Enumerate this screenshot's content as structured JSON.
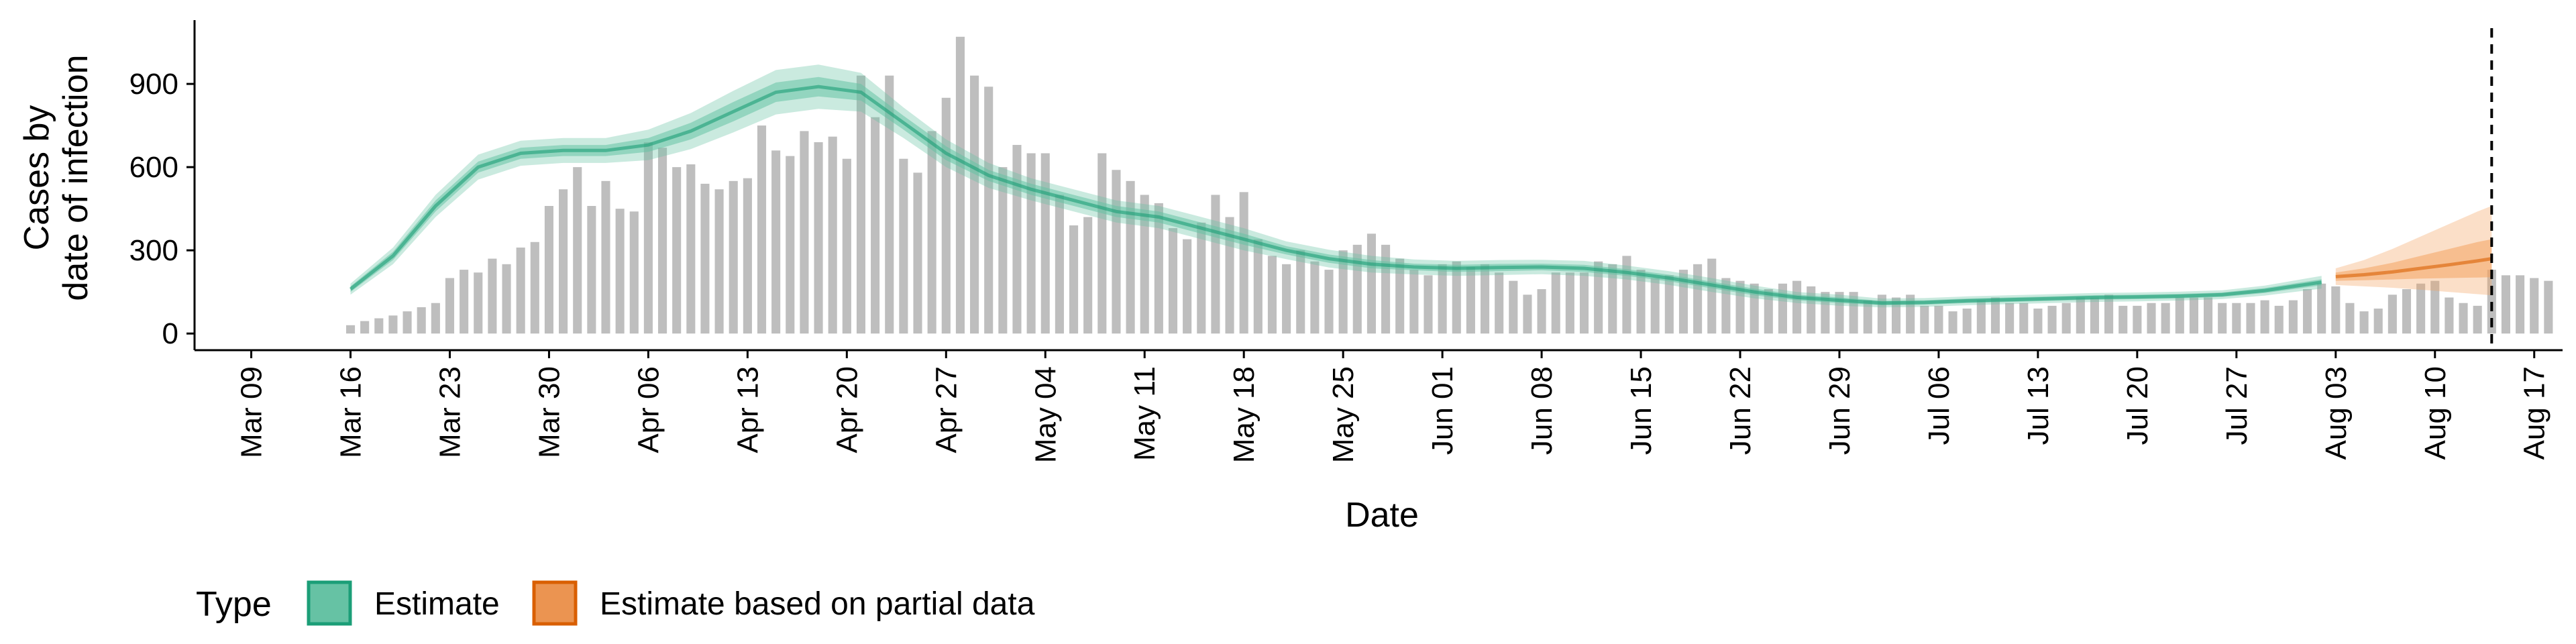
{
  "chart_data": {
    "type": "bar",
    "xlabel": "Date",
    "ylabel_lines": [
      "Cases by",
      "date of infection"
    ],
    "ylim": [
      -60,
      1130
    ],
    "yticks": [
      0,
      300,
      600,
      900
    ],
    "xlim": [
      "2020-03-05",
      "2020-08-19"
    ],
    "xticks": [
      {
        "date": "2020-03-09",
        "label": "Mar 09"
      },
      {
        "date": "2020-03-16",
        "label": "Mar 16"
      },
      {
        "date": "2020-03-23",
        "label": "Mar 23"
      },
      {
        "date": "2020-03-30",
        "label": "Mar 30"
      },
      {
        "date": "2020-04-06",
        "label": "Apr 06"
      },
      {
        "date": "2020-04-13",
        "label": "Apr 13"
      },
      {
        "date": "2020-04-20",
        "label": "Apr 20"
      },
      {
        "date": "2020-04-27",
        "label": "Apr 27"
      },
      {
        "date": "2020-05-04",
        "label": "May 04"
      },
      {
        "date": "2020-05-11",
        "label": "May 11"
      },
      {
        "date": "2020-05-18",
        "label": "May 18"
      },
      {
        "date": "2020-05-25",
        "label": "May 25"
      },
      {
        "date": "2020-06-01",
        "label": "Jun 01"
      },
      {
        "date": "2020-06-08",
        "label": "Jun 08"
      },
      {
        "date": "2020-06-15",
        "label": "Jun 15"
      },
      {
        "date": "2020-06-22",
        "label": "Jun 22"
      },
      {
        "date": "2020-06-29",
        "label": "Jun 29"
      },
      {
        "date": "2020-07-06",
        "label": "Jul 06"
      },
      {
        "date": "2020-07-13",
        "label": "Jul 13"
      },
      {
        "date": "2020-07-20",
        "label": "Jul 20"
      },
      {
        "date": "2020-07-27",
        "label": "Jul 27"
      },
      {
        "date": "2020-08-03",
        "label": "Aug 03"
      },
      {
        "date": "2020-08-10",
        "label": "Aug 10"
      },
      {
        "date": "2020-08-17",
        "label": "Aug 17"
      }
    ],
    "bars": {
      "start_date": "2020-03-16",
      "values": [
        30,
        45,
        55,
        65,
        80,
        95,
        110,
        200,
        230,
        220,
        270,
        250,
        310,
        330,
        460,
        520,
        600,
        460,
        550,
        450,
        440,
        690,
        670,
        600,
        610,
        540,
        520,
        550,
        560,
        750,
        660,
        640,
        730,
        690,
        710,
        630,
        930,
        780,
        930,
        630,
        580,
        730,
        850,
        1070,
        930,
        890,
        600,
        680,
        650,
        650,
        500,
        390,
        420,
        650,
        590,
        550,
        500,
        470,
        380,
        340,
        400,
        500,
        420,
        510,
        340,
        280,
        250,
        300,
        260,
        230,
        300,
        320,
        360,
        320,
        270,
        230,
        210,
        250,
        260,
        240,
        250,
        220,
        190,
        140,
        160,
        220,
        220,
        220,
        260,
        250,
        280,
        230,
        200,
        210,
        230,
        250,
        270,
        200,
        190,
        180,
        160,
        180,
        190,
        170,
        150,
        150,
        150,
        120,
        140,
        130,
        140,
        100,
        100,
        80,
        90,
        120,
        130,
        110,
        110,
        90,
        100,
        110,
        130,
        130,
        140,
        100,
        100,
        110,
        110,
        130,
        130,
        130,
        110,
        110,
        110,
        120,
        100,
        120,
        160,
        180,
        170,
        110,
        80,
        90,
        140,
        160,
        180,
        190,
        130,
        110,
        100,
        230,
        210,
        210,
        200,
        190
      ],
      "color": "#bebebe"
    },
    "estimate": {
      "name": "Estimate",
      "color": "#1b9e77",
      "fill": "#66c2a4",
      "x": [
        "2020-03-16",
        "2020-03-19",
        "2020-03-22",
        "2020-03-25",
        "2020-03-28",
        "2020-03-31",
        "2020-04-03",
        "2020-04-06",
        "2020-04-09",
        "2020-04-12",
        "2020-04-15",
        "2020-04-18",
        "2020-04-21",
        "2020-04-24",
        "2020-04-27",
        "2020-04-30",
        "2020-05-03",
        "2020-05-06",
        "2020-05-09",
        "2020-05-12",
        "2020-05-15",
        "2020-05-18",
        "2020-05-21",
        "2020-05-24",
        "2020-05-27",
        "2020-05-30",
        "2020-06-02",
        "2020-06-05",
        "2020-06-08",
        "2020-06-11",
        "2020-06-14",
        "2020-06-17",
        "2020-06-20",
        "2020-06-23",
        "2020-06-26",
        "2020-06-29",
        "2020-07-02",
        "2020-07-05",
        "2020-07-08",
        "2020-07-11",
        "2020-07-14",
        "2020-07-17",
        "2020-07-20",
        "2020-07-23",
        "2020-07-26",
        "2020-07-29",
        "2020-08-02"
      ],
      "median": [
        160,
        280,
        460,
        600,
        650,
        660,
        660,
        680,
        730,
        800,
        870,
        890,
        870,
        760,
        650,
        570,
        520,
        480,
        440,
        420,
        380,
        340,
        300,
        270,
        250,
        240,
        235,
        238,
        240,
        235,
        220,
        200,
        175,
        150,
        130,
        120,
        110,
        112,
        118,
        122,
        126,
        130,
        132,
        135,
        140,
        155,
        185
      ],
      "lower_50": [
        150,
        265,
        440,
        580,
        630,
        640,
        640,
        655,
        700,
        765,
        835,
        855,
        840,
        735,
        625,
        550,
        500,
        460,
        420,
        400,
        360,
        320,
        285,
        255,
        235,
        228,
        222,
        225,
        228,
        222,
        208,
        188,
        163,
        138,
        120,
        110,
        102,
        104,
        110,
        114,
        118,
        122,
        124,
        127,
        132,
        146,
        174
      ],
      "upper_50": [
        170,
        295,
        480,
        620,
        670,
        680,
        680,
        705,
        760,
        835,
        905,
        925,
        900,
        785,
        675,
        590,
        540,
        500,
        460,
        440,
        400,
        360,
        315,
        285,
        265,
        252,
        248,
        251,
        252,
        248,
        232,
        212,
        187,
        162,
        140,
        130,
        118,
        120,
        126,
        130,
        134,
        138,
        140,
        143,
        148,
        164,
        196
      ],
      "lower_90": [
        140,
        250,
        420,
        555,
        605,
        615,
        615,
        625,
        665,
        725,
        790,
        810,
        800,
        705,
        600,
        525,
        480,
        440,
        400,
        380,
        340,
        300,
        268,
        238,
        220,
        213,
        208,
        211,
        214,
        208,
        195,
        175,
        150,
        127,
        110,
        100,
        94,
        96,
        102,
        106,
        110,
        114,
        116,
        119,
        124,
        137,
        162
      ],
      "upper_90": [
        180,
        310,
        500,
        645,
        695,
        705,
        705,
        735,
        795,
        875,
        950,
        970,
        940,
        815,
        700,
        615,
        560,
        520,
        480,
        460,
        420,
        380,
        332,
        302,
        280,
        267,
        262,
        265,
        266,
        262,
        245,
        225,
        200,
        173,
        150,
        140,
        126,
        128,
        134,
        138,
        142,
        146,
        148,
        151,
        156,
        173,
        208
      ]
    },
    "partial": {
      "name": "Estimate based on partial data",
      "color": "#d95f02",
      "fill": "#f4a261",
      "x": [
        "2020-08-03",
        "2020-08-05",
        "2020-08-07",
        "2020-08-09",
        "2020-08-11",
        "2020-08-13",
        "2020-08-14"
      ],
      "median": [
        205,
        212,
        222,
        235,
        248,
        262,
        270
      ],
      "lower_50": [
        190,
        192,
        195,
        198,
        200,
        202,
        203
      ],
      "upper_50": [
        220,
        235,
        255,
        280,
        305,
        330,
        340
      ],
      "lower_90": [
        175,
        170,
        165,
        158,
        150,
        142,
        138
      ],
      "upper_90": [
        235,
        265,
        305,
        350,
        395,
        440,
        460
      ]
    },
    "vline": "2020-08-14",
    "legend": {
      "title": "Type",
      "position": "bottom-left",
      "items": [
        {
          "label": "Estimate",
          "fill": "#66c2a4",
          "stroke": "#1b9e77"
        },
        {
          "label": "Estimate based on partial data",
          "fill": "#eb9451",
          "stroke": "#d95f02"
        }
      ]
    }
  }
}
